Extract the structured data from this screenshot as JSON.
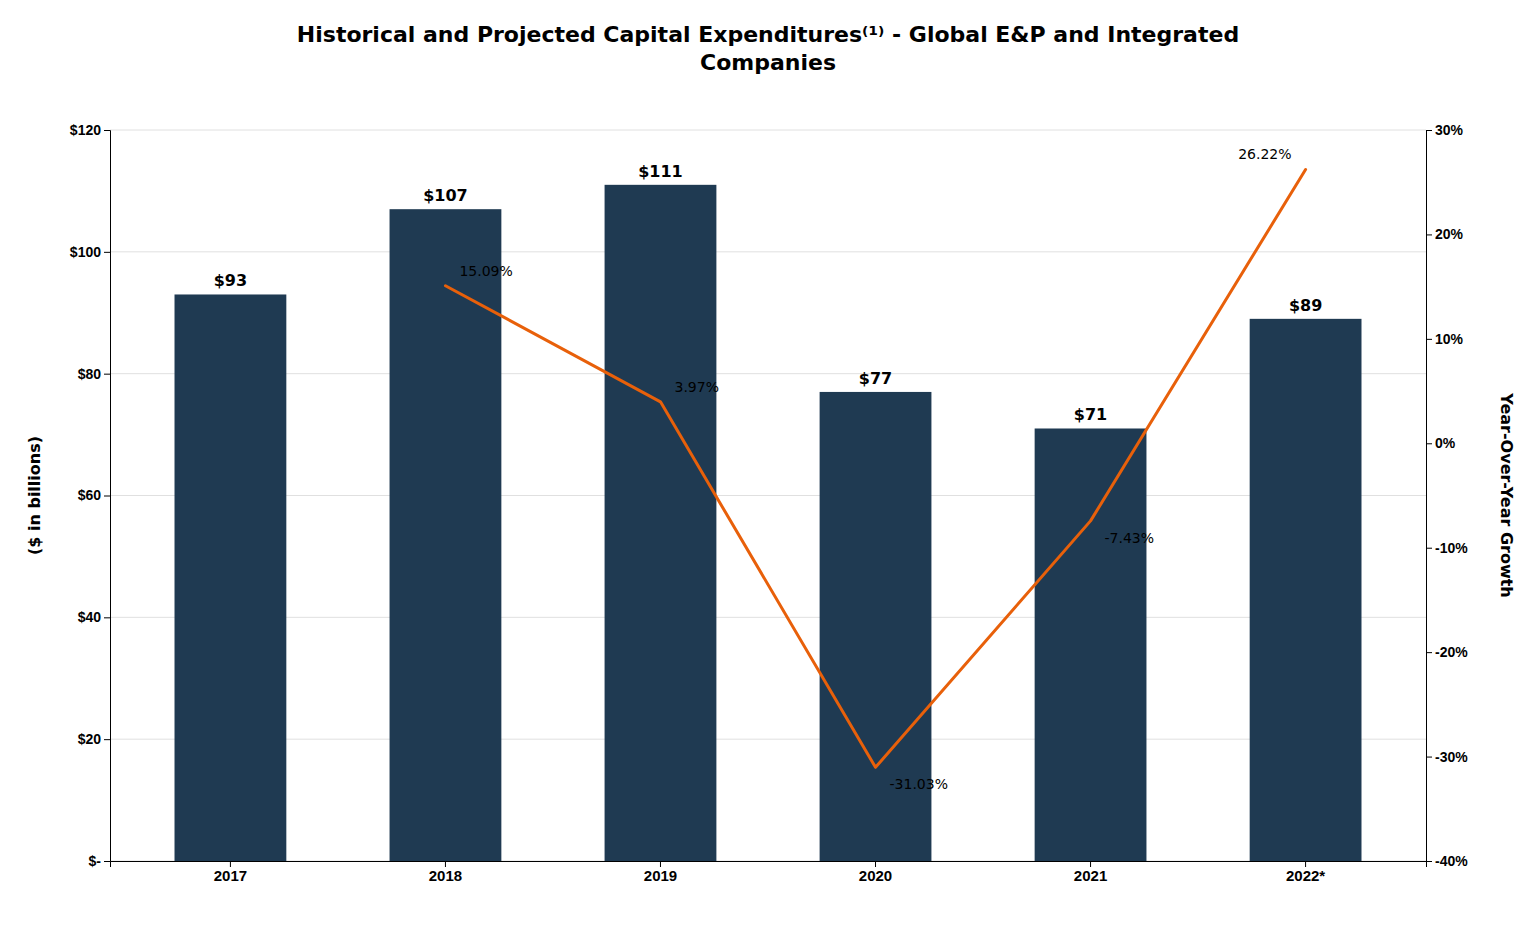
{
  "chart_data": {
    "type": "bar",
    "title": "Historical and Projected Capital Expenditures⁽¹⁾  - Global E&P and Integrated\nCompanies",
    "categories": [
      "2017",
      "2018",
      "2019",
      "2020",
      "2021",
      "2022*"
    ],
    "series": [
      {
        "type": "bar",
        "color": "#1F3A52",
        "values": [
          93,
          107,
          111,
          77,
          71,
          89
        ],
        "value_labels": [
          "$93",
          "$107",
          "$111",
          "$77",
          "$71",
          "$89"
        ],
        "data_labels": true
      },
      {
        "type": "line",
        "axis": "y2",
        "color": "#E8600A",
        "values": [
          null,
          15.09,
          3.97,
          -31.03,
          -7.43,
          26.22
        ],
        "value_labels": [
          null,
          "15.09%",
          "3.97%",
          "-31.03%",
          "-7.43%",
          "26.22%"
        ],
        "data_labels": true
      }
    ],
    "ylabel": "($ in billions)",
    "y2label": "Year-Over-Year Growth",
    "ylim": [
      0,
      120
    ],
    "yticks": [
      {
        "value": 0,
        "label": "$-"
      },
      {
        "value": 20,
        "label": "$20"
      },
      {
        "value": 40,
        "label": "$40"
      },
      {
        "value": 60,
        "label": "$60"
      },
      {
        "value": 80,
        "label": "$80"
      },
      {
        "value": 100,
        "label": "$100"
      },
      {
        "value": 120,
        "label": "$120"
      }
    ],
    "y2lim": [
      -40,
      30
    ],
    "y2ticks": [
      {
        "value": -40,
        "label": "-40%"
      },
      {
        "value": -30,
        "label": "-30%"
      },
      {
        "value": -20,
        "label": "-20%"
      },
      {
        "value": -10,
        "label": "-10%"
      },
      {
        "value": 0,
        "label": "0%"
      },
      {
        "value": 10,
        "label": "10%"
      },
      {
        "value": 20,
        "label": "20%"
      },
      {
        "value": 30,
        "label": "30%"
      }
    ],
    "grid": true
  }
}
